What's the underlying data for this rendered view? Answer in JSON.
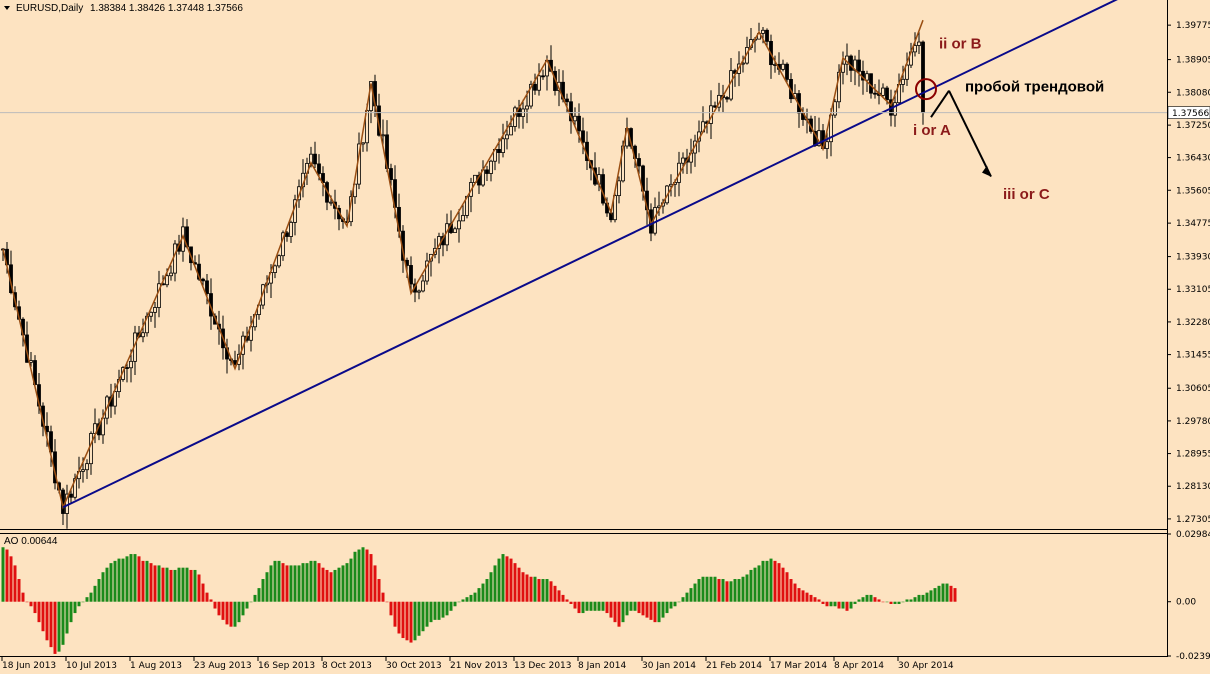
{
  "header": {
    "symbol_timeframe": "EURUSD,Daily",
    "ohlc": "1.38384 1.38426 1.37448 1.37566"
  },
  "colors": {
    "background": "#fde3c1",
    "bull": "#000000",
    "zigzag": "#9a4e12",
    "trendline": "#0a0a8a",
    "ao_up": "#1a8a1a",
    "ao_down": "#e01010",
    "circle": "#8b0000",
    "annotation": "#8b1a1a"
  },
  "annotations": {
    "ii_or_b": "ii or B",
    "i_or_a": "i or A",
    "iii_or_c": "iii or C",
    "breakout_label": "пробой трендовой"
  },
  "chart_data": [
    {
      "type": "candlestick",
      "title": "EURUSD,Daily",
      "ohlc_last": [
        1.38384,
        1.38426,
        1.37448,
        1.37566
      ],
      "current_price_label": "1.37566",
      "ylim": [
        1.2705,
        1.4041
      ],
      "y_ticks": [
        "1.39775",
        "1.38905",
        "1.38080",
        "1.37250",
        "1.36430",
        "1.35605",
        "1.34775",
        "1.33930",
        "1.33105",
        "1.32280",
        "1.31455",
        "1.30605",
        "1.29780",
        "1.28955",
        "1.28130",
        "1.27305"
      ],
      "x_ticks": [
        "18 Jun 2013",
        "10 Jul 2013",
        "1 Aug 2013",
        "23 Aug 2013",
        "16 Sep 2013",
        "8 Oct 2013",
        "30 Oct 2013",
        "21 Nov 2013",
        "13 Dec 2013",
        "8 Jan 2014",
        "30 Jan 2014",
        "21 Feb 2014",
        "17 Mar 2014",
        "8 Apr 2014",
        "30 Apr 2014"
      ],
      "zigzag_pivots": [
        {
          "bar": 0,
          "price": 1.3412
        },
        {
          "bar": 15,
          "price": 1.276
        },
        {
          "bar": 45,
          "price": 1.3445
        },
        {
          "bar": 58,
          "price": 1.311
        },
        {
          "bar": 77,
          "price": 1.363
        },
        {
          "bar": 86,
          "price": 1.347
        },
        {
          "bar": 92,
          "price": 1.383
        },
        {
          "bar": 102,
          "price": 1.33
        },
        {
          "bar": 136,
          "price": 1.389
        },
        {
          "bar": 152,
          "price": 1.3505
        },
        {
          "bar": 156,
          "price": 1.372
        },
        {
          "bar": 162,
          "price": 1.3475
        },
        {
          "bar": 189,
          "price": 1.396
        },
        {
          "bar": 205,
          "price": 1.3665
        },
        {
          "bar": 210,
          "price": 1.3895
        },
        {
          "bar": 222,
          "price": 1.3775
        },
        {
          "bar": 230,
          "price": 1.399
        }
      ],
      "trendline": [
        {
          "bar": 15,
          "price": 1.276
        },
        {
          "bar": 162,
          "price": 1.3475
        },
        {
          "bar": 280,
          "price": 1.405
        }
      ]
    },
    {
      "type": "bar",
      "title": "AO 0.00644",
      "indicator": "AO",
      "last_value": 0.00644,
      "ylim": [
        -0.02392,
        0.02984
      ],
      "y_ticks": [
        "0.02984",
        "0.00",
        "-0.02392"
      ],
      "values": [
        0.024,
        0.023,
        0.02,
        0.016,
        0.01,
        0.004,
        0.0,
        -0.002,
        -0.005,
        -0.009,
        -0.013,
        -0.017,
        -0.02,
        -0.023,
        -0.022,
        -0.019,
        -0.014,
        -0.009,
        -0.005,
        -0.002,
        0.0,
        0.002,
        0.004,
        0.007,
        0.01,
        0.013,
        0.015,
        0.017,
        0.018,
        0.019,
        0.019,
        0.02,
        0.021,
        0.021,
        0.02,
        0.018,
        0.018,
        0.017,
        0.016,
        0.016,
        0.015,
        0.015,
        0.014,
        0.014,
        0.015,
        0.015,
        0.015,
        0.014,
        0.014,
        0.012,
        0.008,
        0.004,
        0.001,
        -0.003,
        -0.006,
        -0.008,
        -0.01,
        -0.011,
        -0.011,
        -0.009,
        -0.006,
        -0.003,
        0.0,
        0.003,
        0.006,
        0.01,
        0.013,
        0.016,
        0.018,
        0.018,
        0.017,
        0.016,
        0.016,
        0.016,
        0.016,
        0.017,
        0.017,
        0.018,
        0.018,
        0.017,
        0.015,
        0.014,
        0.013,
        0.014,
        0.015,
        0.016,
        0.017,
        0.019,
        0.022,
        0.023,
        0.024,
        0.023,
        0.021,
        0.016,
        0.01,
        0.004,
        0.0,
        -0.006,
        -0.011,
        -0.014,
        -0.016,
        -0.017,
        -0.018,
        -0.017,
        -0.015,
        -0.013,
        -0.011,
        -0.009,
        -0.008,
        -0.008,
        -0.007,
        -0.006,
        -0.004,
        -0.002,
        0.0,
        0.001,
        0.002,
        0.003,
        0.004,
        0.006,
        0.008,
        0.01,
        0.013,
        0.016,
        0.019,
        0.021,
        0.02,
        0.019,
        0.017,
        0.015,
        0.013,
        0.012,
        0.011,
        0.011,
        0.01,
        0.01,
        0.01,
        0.009,
        0.007,
        0.005,
        0.003,
        0.001,
        -0.001,
        -0.003,
        -0.005,
        -0.005,
        -0.004,
        -0.004,
        -0.004,
        -0.004,
        -0.004,
        -0.005,
        -0.007,
        -0.009,
        -0.011,
        -0.009,
        -0.006,
        -0.004,
        -0.004,
        -0.005,
        -0.006,
        -0.007,
        -0.008,
        -0.009,
        -0.009,
        -0.007,
        -0.005,
        -0.003,
        -0.002,
        0.0,
        0.002,
        0.004,
        0.006,
        0.008,
        0.01,
        0.011,
        0.011,
        0.011,
        0.011,
        0.01,
        0.01,
        0.009,
        0.009,
        0.01,
        0.01,
        0.011,
        0.012,
        0.014,
        0.015,
        0.016,
        0.018,
        0.018,
        0.019,
        0.018,
        0.017,
        0.015,
        0.013,
        0.01,
        0.008,
        0.006,
        0.005,
        0.004,
        0.003,
        0.002,
        0.001,
        -0.001,
        -0.002,
        -0.002,
        -0.002,
        -0.003,
        -0.003,
        -0.004,
        -0.003,
        -0.001,
        0.001,
        0.002,
        0.003,
        0.003,
        0.002,
        0.001,
        0.0,
        0.0,
        -0.001,
        -0.001,
        -0.001,
        0.0,
        0.001,
        0.001,
        0.002,
        0.003,
        0.003,
        0.004,
        0.005,
        0.006,
        0.007,
        0.008,
        0.008,
        0.007,
        0.006
      ]
    }
  ]
}
